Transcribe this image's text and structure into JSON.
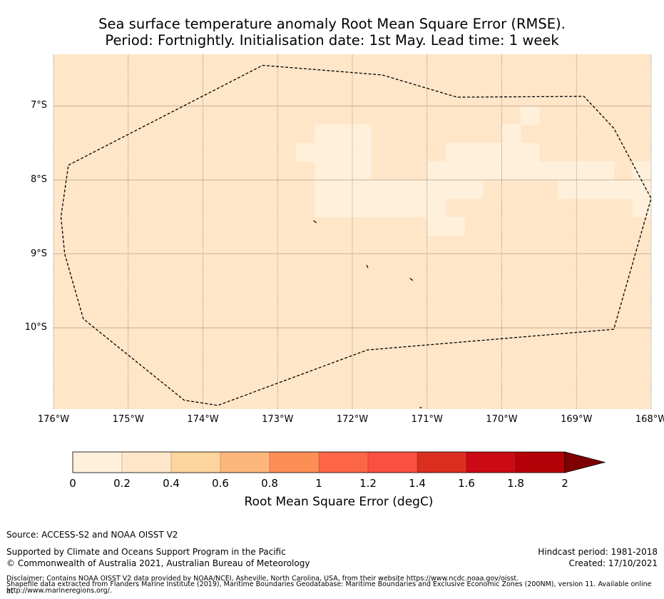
{
  "title": {
    "line1": "Sea surface temperature anomaly Root Mean Square Error (RMSE).",
    "line2": "Period: Fortnightly. Initialisation date: 1st May. Lead time: 1 week"
  },
  "map": {
    "lon_range": [
      -176,
      -168
    ],
    "lat_range": [
      -11.1,
      -6.3
    ],
    "background_color": "#ffe6c8",
    "low_color": "#fff0dc",
    "y_ticks": [
      {
        "lat": -7,
        "label": "7°S"
      },
      {
        "lat": -8,
        "label": "8°S"
      },
      {
        "lat": -9,
        "label": "9°S"
      },
      {
        "lat": -10,
        "label": "10°S"
      }
    ],
    "x_ticks": [
      {
        "lon": -176,
        "label": "176°W"
      },
      {
        "lon": -175,
        "label": "175°W"
      },
      {
        "lon": -174,
        "label": "174°W"
      },
      {
        "lon": -173,
        "label": "173°W"
      },
      {
        "lon": -172,
        "label": "172°W"
      },
      {
        "lon": -171,
        "label": "171°W"
      },
      {
        "lon": -170,
        "label": "170°W"
      },
      {
        "lon": -169,
        "label": "169°W"
      },
      {
        "lon": -168,
        "label": "168°W"
      }
    ],
    "eez_boundary": [
      [
        -175.8,
        -7.8
      ],
      [
        -173.2,
        -6.45
      ],
      [
        -171.6,
        -6.58
      ],
      [
        -170.6,
        -6.88
      ],
      [
        -168.9,
        -6.87
      ],
      [
        -168.5,
        -7.3
      ],
      [
        -168.0,
        -8.25
      ],
      [
        -168.5,
        -10.02
      ],
      [
        -171.8,
        -10.3
      ],
      [
        -173.8,
        -11.05
      ],
      [
        -174.25,
        -10.98
      ],
      [
        -175.6,
        -9.88
      ],
      [
        -175.85,
        -9.0
      ],
      [
        -175.9,
        -8.5
      ],
      [
        -175.8,
        -7.8
      ]
    ],
    "low_rmse_cells": [
      [
        -172.5,
        -7.25,
        -172.25,
        -7.5
      ],
      [
        -172.25,
        -7.25,
        -171.75,
        -7.75
      ],
      [
        -172.75,
        -7.5,
        -172.25,
        -7.75
      ],
      [
        -172.5,
        -7.75,
        -171.75,
        -8.0
      ],
      [
        -172.5,
        -8.0,
        -171.25,
        -8.25
      ],
      [
        -172.5,
        -8.25,
        -170.75,
        -8.5
      ],
      [
        -171.5,
        -8.0,
        -170.25,
        -8.25
      ],
      [
        -171.0,
        -7.75,
        -169.0,
        -8.0
      ],
      [
        -170.75,
        -7.5,
        -169.5,
        -7.75
      ],
      [
        -170.0,
        -7.25,
        -169.75,
        -7.5
      ],
      [
        -169.75,
        -7.0,
        -169.5,
        -7.25
      ],
      [
        -171.0,
        -8.5,
        -170.5,
        -8.75
      ],
      [
        -169.0,
        -7.75,
        -168.5,
        -8.0
      ],
      [
        -169.25,
        -8.0,
        -168.5,
        -8.25
      ],
      [
        -168.25,
        -7.75,
        -168.0,
        -8.5
      ],
      [
        -168.5,
        -8.0,
        -168.25,
        -8.25
      ]
    ],
    "islands": [
      [
        [
          -172.52,
          -8.55
        ],
        [
          -172.48,
          -8.58
        ]
      ],
      [
        [
          -171.81,
          -9.15
        ],
        [
          -171.79,
          -9.19
        ]
      ],
      [
        [
          -171.23,
          -9.33
        ],
        [
          -171.19,
          -9.36
        ]
      ],
      [
        [
          -171.1,
          -11.08
        ],
        [
          -171.07,
          -11.08
        ]
      ]
    ]
  },
  "colorbar": {
    "label": "Root Mean Square Error (degC)",
    "ticks": [
      "0",
      "0.2",
      "0.4",
      "0.6",
      "0.8",
      "1",
      "1.2",
      "1.4",
      "1.6",
      "1.8",
      "2"
    ],
    "colors": [
      "#fff0dc",
      "#ffe6c8",
      "#fed49e",
      "#fdb67c",
      "#fd8e55",
      "#fc6646",
      "#fb5041",
      "#db2e1f",
      "#ca0b14",
      "#b30007"
    ],
    "extend_color": "#7f0000"
  },
  "footer": {
    "source": "Source: ACCESS-S2 and NOAA OISST V2",
    "supported": "Supported by Climate and Oceans Support Program in the Pacific",
    "copyright": "© Commonwealth of Australia 2021, Australian Bureau of Meteorology",
    "hindcast": "Hindcast period: 1981-2018",
    "created": "Created: 17/10/2021",
    "disclaimer1": "Disclaimer: Contains NOAA OISST V2 data provided by NOAA/NCEI, Asheville, North Carolina, USA, from their website https://www.ncdc.noaa.gov/oisst.",
    "disclaimer2": "Shapefile data extracted from Flanders Marine Institute (2019), Maritime Boundaries Geodatabase: Maritime Boundaries and Exclusive Economic Zones (200NM), version 11. Available online at",
    "disclaimer3": "http://www.marineregions.org/."
  }
}
